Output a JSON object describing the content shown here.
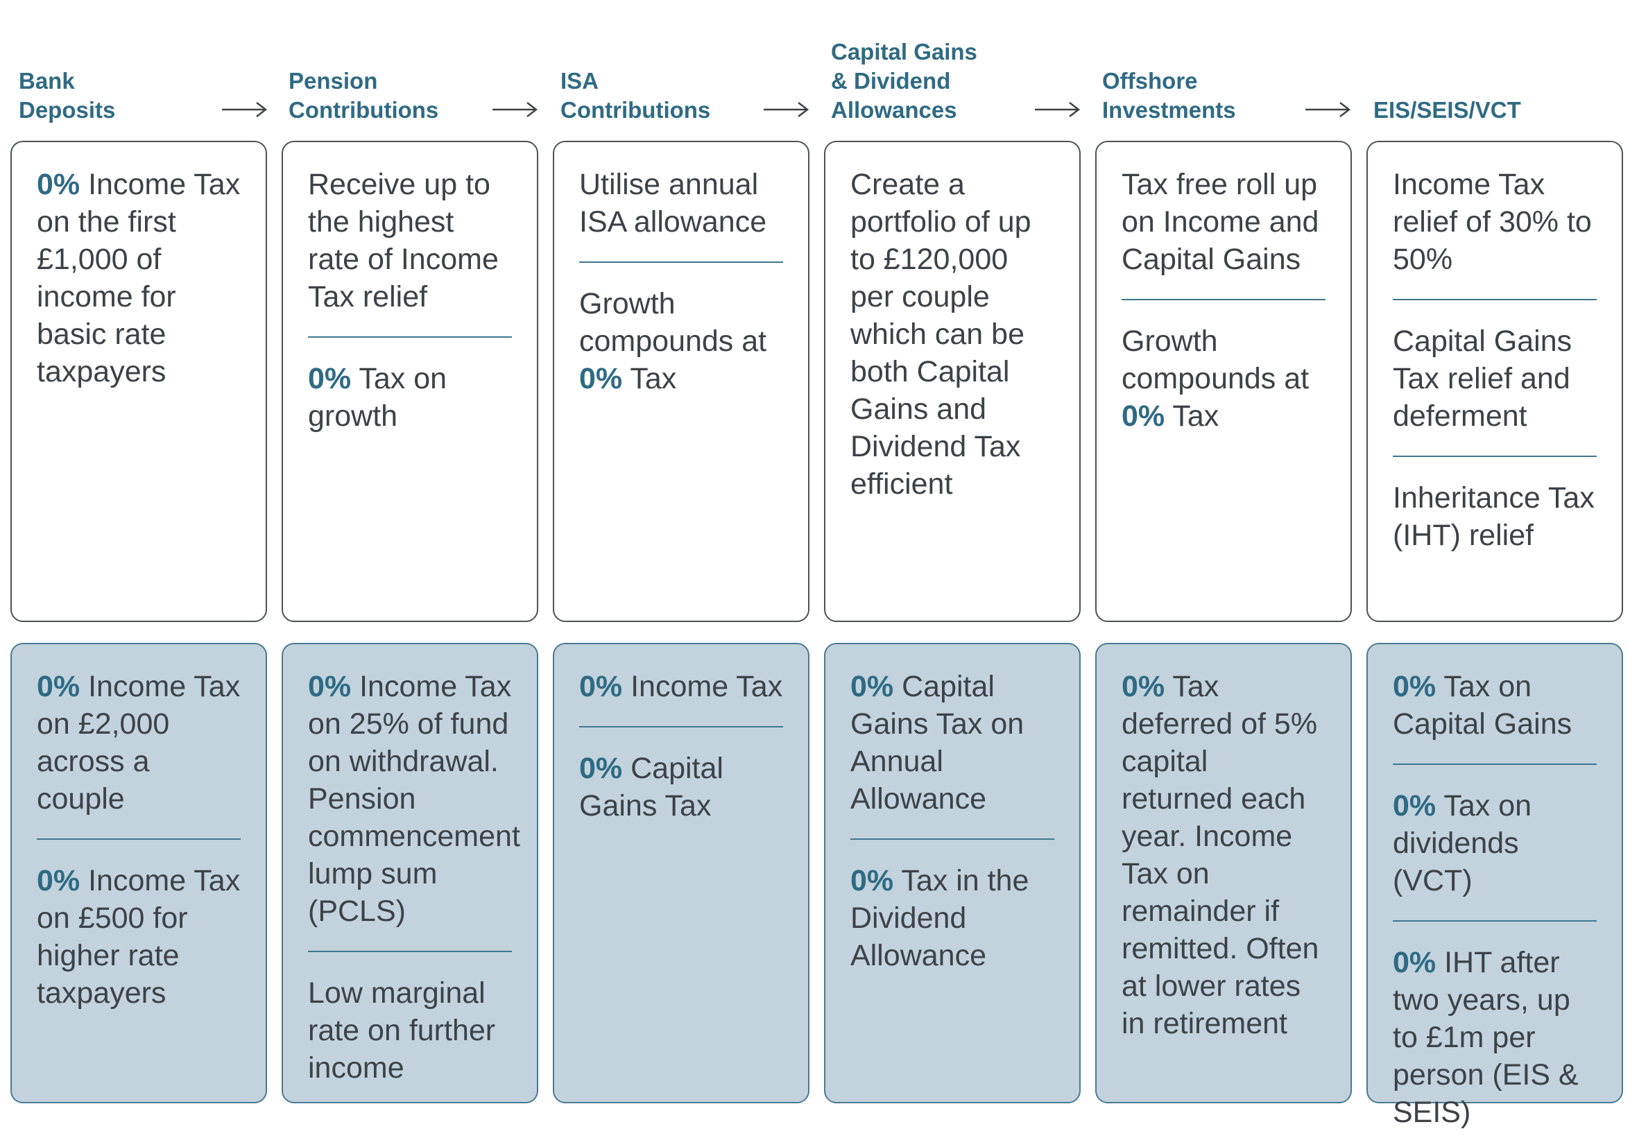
{
  "columns": [
    {
      "header": [
        "Bank",
        "Deposits"
      ],
      "top": [
        {
          "bold": "0%",
          "text": " Income Tax on the first £1,000 of income for basic rate taxpayers"
        }
      ],
      "bottom": [
        {
          "bold": "0%",
          "text": " Income Tax on £2,000 across a couple"
        },
        {
          "bold": "0%",
          "text": " Income Tax on £500 for higher rate taxpayers"
        }
      ]
    },
    {
      "header": [
        "Pension",
        "Contributions"
      ],
      "top": [
        {
          "bold": "",
          "text": "Receive up to the highest rate of Income Tax relief"
        },
        {
          "bold": "0%",
          "text": " Tax on growth"
        }
      ],
      "bottom": [
        {
          "bold": "0%",
          "text": " Income Tax on 25% of fund on withdrawal. Pension commencement lump sum (PCLS)"
        },
        {
          "bold": "",
          "text": "Low marginal rate on further income"
        }
      ]
    },
    {
      "header": [
        "ISA",
        "Contributions"
      ],
      "top": [
        {
          "bold": "",
          "text": "Utilise annual ISA allowance"
        },
        {
          "pre": "Growth compounds at ",
          "bold": "0%",
          "text": " Tax"
        }
      ],
      "bottom": [
        {
          "bold": "0%",
          "text": " Income Tax"
        },
        {
          "bold": "0%",
          "text": " Capital Gains Tax"
        }
      ]
    },
    {
      "header": [
        "Capital Gains",
        "& Dividend",
        "Allowances"
      ],
      "top": [
        {
          "bold": "",
          "text": "Create a portfolio of up to £120,000 per couple which can be both Capital Gains and Dividend Tax efficient"
        }
      ],
      "bottom": [
        {
          "bold": "0%",
          "text": " Capital Gains Tax on Annual Allowance"
        },
        {
          "bold": "0%",
          "text": " Tax in the Dividend Allowance"
        }
      ]
    },
    {
      "header": [
        "Offshore",
        "Investments"
      ],
      "top": [
        {
          "bold": "",
          "text": "Tax free roll up on Income and Capital Gains"
        },
        {
          "pre": "Growth compounds at ",
          "bold": "0%",
          "text": " Tax"
        }
      ],
      "bottom": [
        {
          "bold": "0%",
          "text": " Tax deferred of 5% capital returned each year. Income Tax on remainder if remitted. Often at lower rates in retirement"
        }
      ]
    },
    {
      "header": [
        "EIS/SEIS/VCT"
      ],
      "top": [
        {
          "bold": "",
          "text": "Income Tax relief of 30% to 50%"
        },
        {
          "bold": "",
          "text": "Capital Gains Tax relief and deferment"
        },
        {
          "bold": "",
          "text": "Inheritance Tax (IHT) relief"
        }
      ],
      "bottom": [
        {
          "bold": "0%",
          "text": " Tax on Capital Gains"
        },
        {
          "bold": "0%",
          "text": " Tax on dividends (VCT)"
        },
        {
          "bold": "0%",
          "text": " IHT after two years, up to £1m per person (EIS & SEIS)"
        }
      ]
    }
  ],
  "colors": {
    "heading": "#2f6a84",
    "body_text": "#3d4247",
    "top_border": "#4d5257",
    "bottom_fill": "#c2d3dd",
    "bottom_border": "#4a7a92",
    "divider": "#3f7690"
  },
  "icons": [
    "arrow-right-icon"
  ]
}
